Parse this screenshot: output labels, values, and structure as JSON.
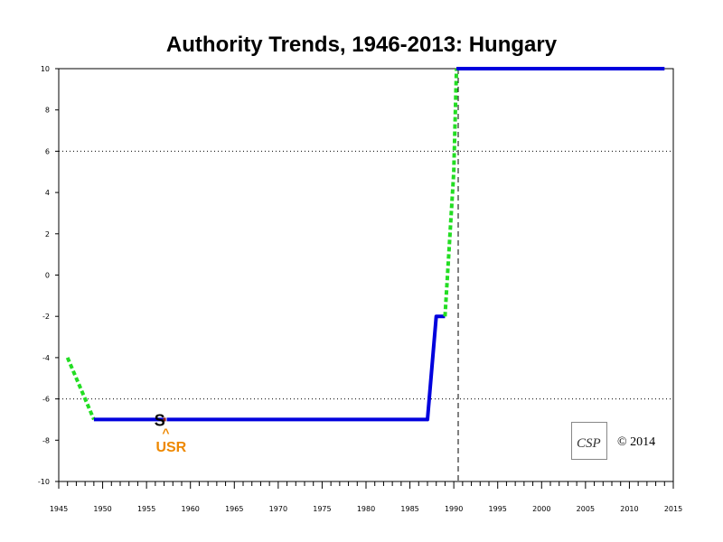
{
  "chart_data": {
    "type": "line",
    "title": "Authority Trends, 1946-2013: Hungary",
    "xlabel": "",
    "ylabel": "",
    "xlim": [
      1945,
      2015
    ],
    "ylim": [
      -10,
      10
    ],
    "x_tick_labels": [
      1945,
      1950,
      1955,
      1960,
      1965,
      1970,
      1975,
      1980,
      1985,
      1990,
      1995,
      2000,
      2005,
      2010,
      2015
    ],
    "y_tick_labels": [
      10,
      8,
      6,
      4,
      2,
      0,
      -2,
      -4,
      -6,
      -8,
      -10
    ],
    "reference_lines_y": [
      6,
      -6
    ],
    "reference_line_x": 1990.5,
    "colors": {
      "polity": "#0000dd",
      "transition": "#22dd22",
      "annotation": "#ee8800"
    },
    "segments": [
      {
        "style": "transition",
        "points": [
          [
            1946,
            -4
          ],
          [
            1949,
            -7
          ]
        ]
      },
      {
        "style": "polity",
        "points": [
          [
            1949,
            -7
          ],
          [
            1957,
            -7
          ]
        ]
      },
      {
        "style": "polity",
        "points": [
          [
            1957.3,
            -7
          ],
          [
            1987,
            -7
          ],
          [
            1988,
            -2
          ],
          [
            1989,
            -2
          ]
        ]
      },
      {
        "style": "transition",
        "points": [
          [
            1989,
            -2
          ],
          [
            1990,
            5
          ],
          [
            1990.3,
            10
          ]
        ]
      },
      {
        "style": "polity",
        "points": [
          [
            1990.3,
            10
          ],
          [
            2014,
            10
          ]
        ]
      }
    ],
    "annotations": [
      {
        "text": "S",
        "x": 1956.5,
        "y": -7,
        "color": "#000000"
      },
      {
        "text": "^",
        "x": 1957.2,
        "y": -7.6,
        "color": "#ee8800"
      },
      {
        "text": "USR",
        "x": 1957.8,
        "y": -8.3,
        "color": "#ee8800"
      }
    ]
  },
  "logo": {
    "letters": "CSP"
  },
  "copyright": "© 2014"
}
